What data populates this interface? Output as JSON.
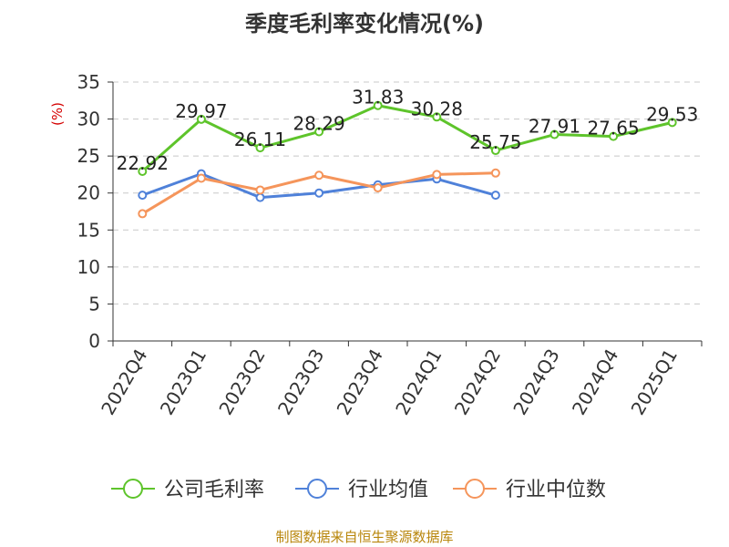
{
  "chart_data": {
    "type": "line",
    "title": "季度毛利率变化情况(%)",
    "ylabel": "(%)",
    "ylim": [
      0,
      35
    ],
    "yticks": [
      0,
      5,
      10,
      15,
      20,
      25,
      30,
      35
    ],
    "grid": true,
    "legend_position": "bottom",
    "categories": [
      "2022Q4",
      "2023Q1",
      "2023Q2",
      "2023Q3",
      "2023Q4",
      "2024Q1",
      "2024Q2",
      "2024Q3",
      "2024Q4",
      "2025Q1"
    ],
    "series": [
      {
        "name": "公司毛利率",
        "color": "#5ec42b",
        "values": [
          22.92,
          29.97,
          26.11,
          28.29,
          31.83,
          30.28,
          25.75,
          27.91,
          27.65,
          29.53
        ],
        "labels": [
          "22.92",
          "29.97",
          "26.11",
          "28.29",
          "31.83",
          "30.28",
          "25.75",
          "27.91",
          "27.65",
          "29.53"
        ]
      },
      {
        "name": "行业均值",
        "color": "#4f81d9",
        "values": [
          19.7,
          22.6,
          19.4,
          20.0,
          21.1,
          21.9,
          19.7,
          null,
          null,
          null
        ]
      },
      {
        "name": "行业中位数",
        "color": "#f5955b",
        "values": [
          17.2,
          22.0,
          20.4,
          22.4,
          20.7,
          22.5,
          22.7,
          null,
          null,
          null
        ]
      }
    ],
    "source": "制图数据来自恒生聚源数据库"
  }
}
